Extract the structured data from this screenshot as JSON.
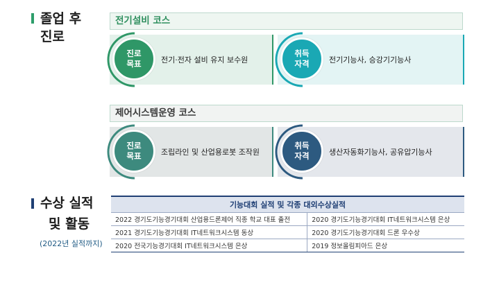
{
  "career": {
    "title_line1": "졸업 후",
    "title_line2": "진로",
    "accent_color": "#2e9e6b"
  },
  "courses": [
    {
      "name": "전기설비 코스",
      "name_color": "#2e8f5e",
      "header_bg": "#eef6f1",
      "goal": {
        "label_line1": "진로",
        "label_line2": "목표",
        "text": "전기·전자 설비 유지 보수원",
        "color": "#2f9767"
      },
      "license": {
        "label_line1": "취득",
        "label_line2": "자격",
        "text": "전기기능사, 승강기기능사",
        "color": "#1aa8b4"
      }
    },
    {
      "name": "제어시스템운영 코스",
      "name_color": "#3a3a3a",
      "header_bg": "#f1f3f2",
      "goal": {
        "label_line1": "진로",
        "label_line2": "목표",
        "text": "조립라인 및 산업용로봇 조작원",
        "color": "#3d8a7e"
      },
      "license": {
        "label_line1": "취득",
        "label_line2": "자격",
        "text": "생산자동화기능사, 공유압기능사",
        "color": "#2d5a80"
      }
    }
  ],
  "awards": {
    "title_line1": "수상 실적",
    "title_line2": "및 활동",
    "note": "(2022년 실적까지)",
    "accent_color": "#1f3f74",
    "table_header": "기능대회 실적 및 각종 대외수상실적",
    "rows": [
      [
        "2022 경기도기능경기대회 산업용드론제어 직종 학교 대표 출전",
        "2020 경기도기능경기대회 IT네트워크시스템 은상"
      ],
      [
        "2021 경기도기능경기대회 IT네트워크시스템 동상",
        "2020 경기도기능경기대회 드론 우수상"
      ],
      [
        "2020 전국기능경기대회 IT네트워크시스템 은상",
        "2019 정보올림피아드 은상"
      ]
    ]
  }
}
